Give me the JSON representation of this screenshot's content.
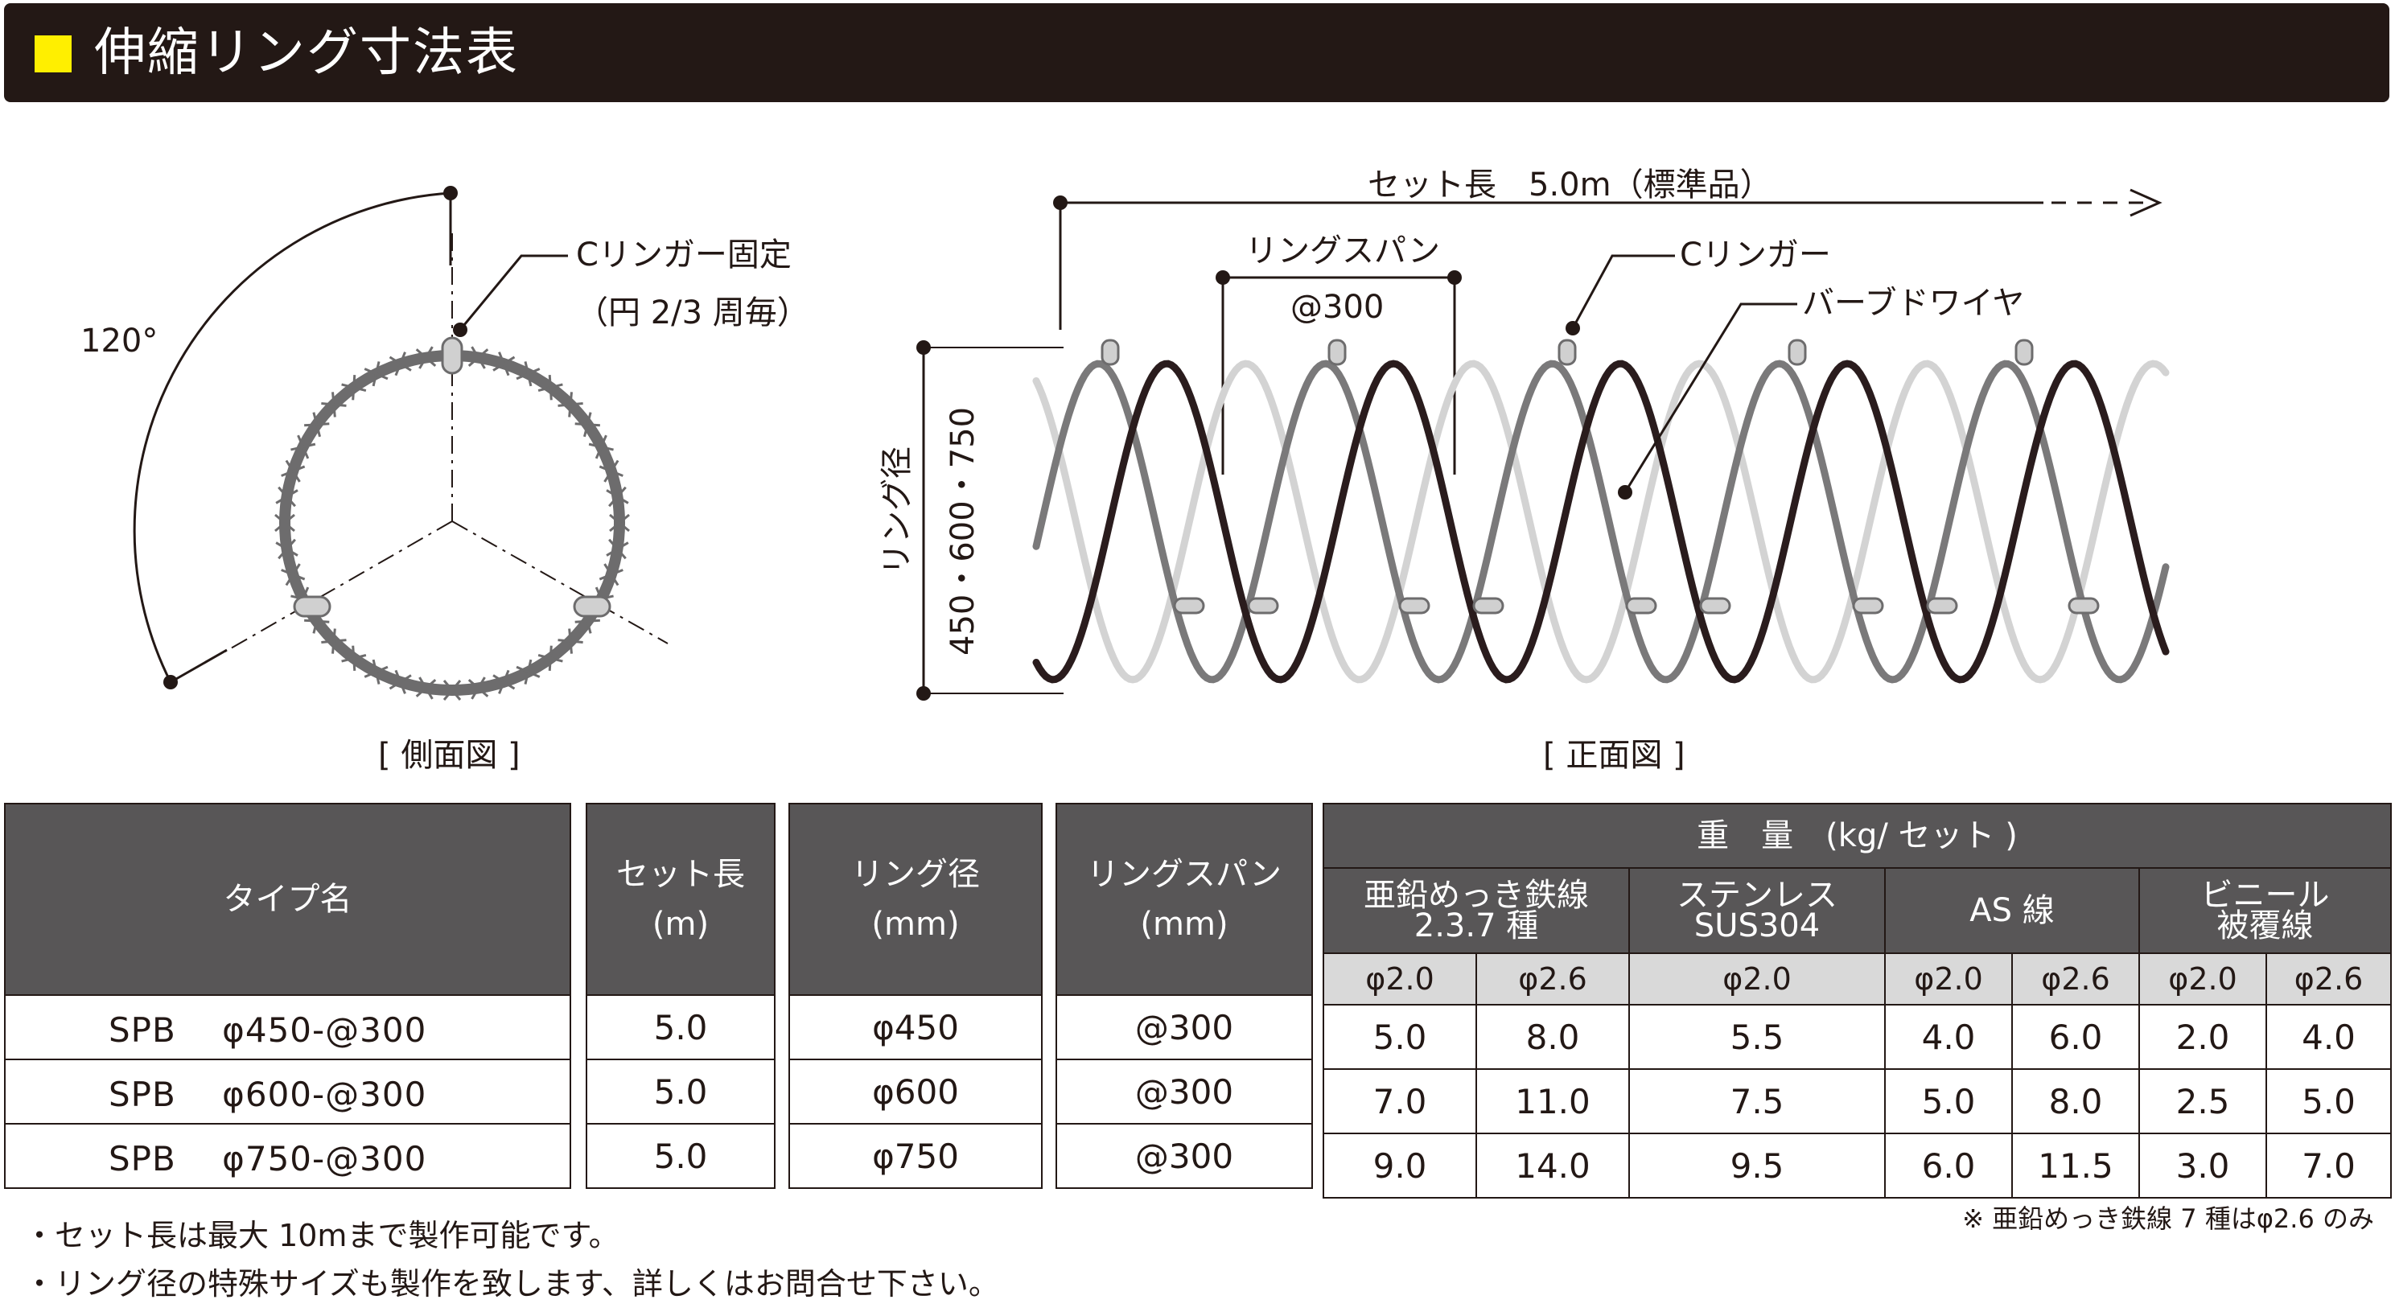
{
  "header": {
    "title": "伸縮リング寸法表"
  },
  "side_view": {
    "angle_label": "120°",
    "ringer_label_1": "Cリンガー固定",
    "ringer_label_2": "（円 2/3 周毎）",
    "caption": "[ 側面図 ]"
  },
  "front_view": {
    "set_length_label": "セット長　5.0m（標準品）",
    "span_label_1": "リングスパン",
    "span_label_2": "@300",
    "ringer_label": "Cリンガー",
    "barbed_label": "バーブドワイヤ",
    "diameter_label": "リング径",
    "diameter_values": "450・600・750",
    "caption": "[ 正面図 ]"
  },
  "table": {
    "headers": {
      "type": "タイプ名",
      "set_length": [
        "セット長",
        "(m)"
      ],
      "ring_diameter": [
        "リング径",
        "(mm)"
      ],
      "ring_span": [
        "リングスパン",
        "(mm)"
      ],
      "weight": "重　量　(kg/ セット )",
      "galvanized": [
        "亜鉛めっき鉄線",
        "2.3.7 種"
      ],
      "stainless": [
        "ステンレス",
        "SUS304"
      ],
      "as_wire": "AS 線",
      "vinyl": [
        "ビニール",
        "被覆線"
      ],
      "sub": [
        "φ2.0",
        "φ2.6",
        "φ2.0",
        "φ2.0",
        "φ2.6",
        "φ2.0",
        "φ2.6"
      ]
    },
    "rows": [
      {
        "type": "SPB　 φ450-@300",
        "set_length": "5.0",
        "diameter": "φ450",
        "span": "@300",
        "w": [
          "5.0",
          "8.0",
          "5.5",
          "4.0",
          "6.0",
          "2.0",
          "4.0"
        ]
      },
      {
        "type": "SPB　 φ600-@300",
        "set_length": "5.0",
        "diameter": "φ600",
        "span": "@300",
        "w": [
          "7.0",
          "11.0",
          "7.5",
          "5.0",
          "8.0",
          "2.5",
          "5.0"
        ]
      },
      {
        "type": "SPB　 φ750-@300",
        "set_length": "5.0",
        "diameter": "φ750",
        "span": "@300",
        "w": [
          "9.0",
          "14.0",
          "9.5",
          "6.0",
          "11.5",
          "3.0",
          "7.0"
        ]
      }
    ]
  },
  "notes": [
    "・セット長は最大 10mまで製作可能です。",
    "・リング径の特殊サイズも製作を致します、詳しくはお問合せ下さい。"
  ],
  "footnote": "※ 亜鉛めっき鉄線 7 種はφ2.6 のみ",
  "colors": {
    "header_bg": "#231815",
    "accent": "#ffef00",
    "header_cell": "#585657",
    "sub_header_cell": "#d9d9d9"
  }
}
